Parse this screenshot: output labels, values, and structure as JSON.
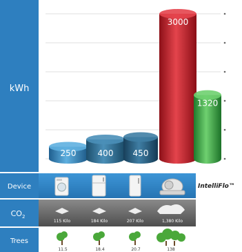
{
  "chart_data": {
    "type": "bar",
    "ylabel": "kWh",
    "categories": [
      "Washing machine",
      "Refrigerator",
      "Freezer",
      "Air conditioner",
      "IntelliFlo"
    ],
    "values": [
      250,
      400,
      450,
      3000,
      1320
    ],
    "data_labels": [
      "250",
      "400",
      "450",
      "3000",
      "1320"
    ],
    "ylim": [
      0,
      3000
    ],
    "grid": true,
    "bar_colors": [
      "#2a7fb8",
      "#2a6f96",
      "#205f80",
      "#c0202a",
      "#3aa845"
    ]
  },
  "rows": [
    {
      "label": "Device",
      "color": "#2e7fbf"
    },
    {
      "label": "CO",
      "sub": "2",
      "color": "#5a5a5a"
    },
    {
      "label": "Trees",
      "color": "#2e7fbf"
    }
  ],
  "brand": "IntelliFlo™",
  "co2": [
    "115 Kilo",
    "184 Kilo",
    "207 Kilo",
    "1,380 Kilo"
  ],
  "trees": [
    "11.5",
    "18.4",
    "20.7",
    "138"
  ],
  "colors": {
    "sidebar": "#2e7fbf",
    "device_band": "#2f86c6",
    "co2_band": "#6a6a6a",
    "tree_green": "#4aa83a"
  }
}
